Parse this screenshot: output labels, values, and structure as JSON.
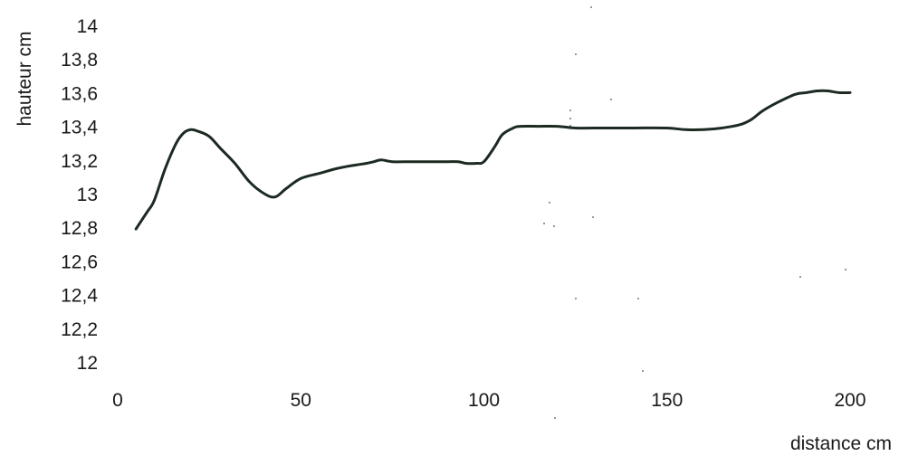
{
  "chart_data": {
    "type": "line",
    "title": "",
    "xlabel": "distance cm",
    "ylabel": "hauteur cm",
    "xlim": [
      0,
      200
    ],
    "ylim": [
      12,
      14
    ],
    "x_ticks": [
      {
        "value": 0,
        "label": "0"
      },
      {
        "value": 50,
        "label": "50"
      },
      {
        "value": 100,
        "label": "100"
      },
      {
        "value": 150,
        "label": "150"
      },
      {
        "value": 200,
        "label": "200"
      }
    ],
    "y_ticks": [
      {
        "value": 12,
        "label": "12"
      },
      {
        "value": 12.2,
        "label": "12,2"
      },
      {
        "value": 12.4,
        "label": "12,4"
      },
      {
        "value": 12.6,
        "label": "12,6"
      },
      {
        "value": 12.8,
        "label": "12,8"
      },
      {
        "value": 13,
        "label": "13"
      },
      {
        "value": 13.2,
        "label": "13,2"
      },
      {
        "value": 13.4,
        "label": "13,4"
      },
      {
        "value": 13.6,
        "label": "13,6"
      },
      {
        "value": 13.8,
        "label": "13,8"
      },
      {
        "value": 14,
        "label": "14"
      }
    ],
    "grid": false,
    "legend": "none",
    "series": [
      {
        "color": "#1c2a22",
        "x": [
          5,
          8,
          10,
          13,
          16,
          18,
          20,
          22,
          25,
          28,
          32,
          36,
          40,
          43,
          46,
          50,
          55,
          60,
          65,
          68,
          70,
          72,
          75,
          80,
          85,
          90,
          93,
          95,
          98,
          100,
          103,
          105,
          108,
          110,
          115,
          120,
          125,
          130,
          140,
          150,
          155,
          160,
          165,
          170,
          173,
          176,
          180,
          185,
          188,
          191,
          194,
          197,
          200
        ],
        "y": [
          12.79,
          12.89,
          12.96,
          13.15,
          13.3,
          13.36,
          13.38,
          13.37,
          13.34,
          13.27,
          13.18,
          13.07,
          13.0,
          12.98,
          13.03,
          13.09,
          13.12,
          13.15,
          13.17,
          13.18,
          13.19,
          13.2,
          13.19,
          13.19,
          13.19,
          13.19,
          13.19,
          13.18,
          13.18,
          13.19,
          13.28,
          13.35,
          13.39,
          13.4,
          13.4,
          13.4,
          13.39,
          13.39,
          13.39,
          13.39,
          13.38,
          13.38,
          13.39,
          13.41,
          13.44,
          13.49,
          13.54,
          13.59,
          13.6,
          13.61,
          13.61,
          13.6,
          13.6
        ]
      }
    ]
  }
}
